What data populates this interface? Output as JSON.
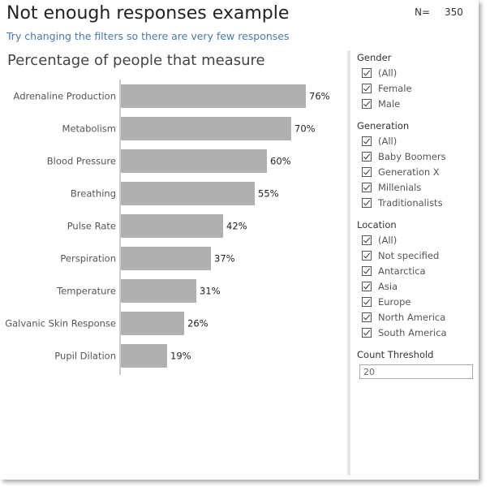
{
  "header": {
    "title": "Not enough responses example",
    "subtitle": "Try changing the filters so there are very few responses",
    "n_label": "N=",
    "n_value": "350"
  },
  "chart_data": {
    "type": "bar",
    "orientation": "horizontal",
    "title": "Percentage of people that measure",
    "categories": [
      "Adrenaline Production",
      "Metabolism",
      "Blood Pressure",
      "Breathing",
      "Pulse Rate",
      "Perspiration",
      "Temperature",
      "Galvanic Skin Response",
      "Pupil Dilation"
    ],
    "values": [
      76,
      70,
      60,
      55,
      42,
      37,
      31,
      26,
      19
    ],
    "value_labels": [
      "76%",
      "70%",
      "60%",
      "55%",
      "42%",
      "37%",
      "31%",
      "26%",
      "19%"
    ],
    "xlim": [
      0,
      100
    ],
    "grid": false,
    "bar_color": "#b0b0b0"
  },
  "filters": {
    "gender": {
      "title": "Gender",
      "items": [
        "(All)",
        "Female",
        "Male"
      ]
    },
    "generation": {
      "title": "Generation",
      "items": [
        "(All)",
        "Baby Boomers",
        "Generation X",
        "Millenials",
        "Traditionalists"
      ]
    },
    "location": {
      "title": "Location",
      "items": [
        "(All)",
        "Not specified",
        "Antarctica",
        "Asia",
        "Europe",
        "North America",
        "South America"
      ]
    },
    "threshold": {
      "title": "Count Threshold",
      "value": "20"
    }
  }
}
